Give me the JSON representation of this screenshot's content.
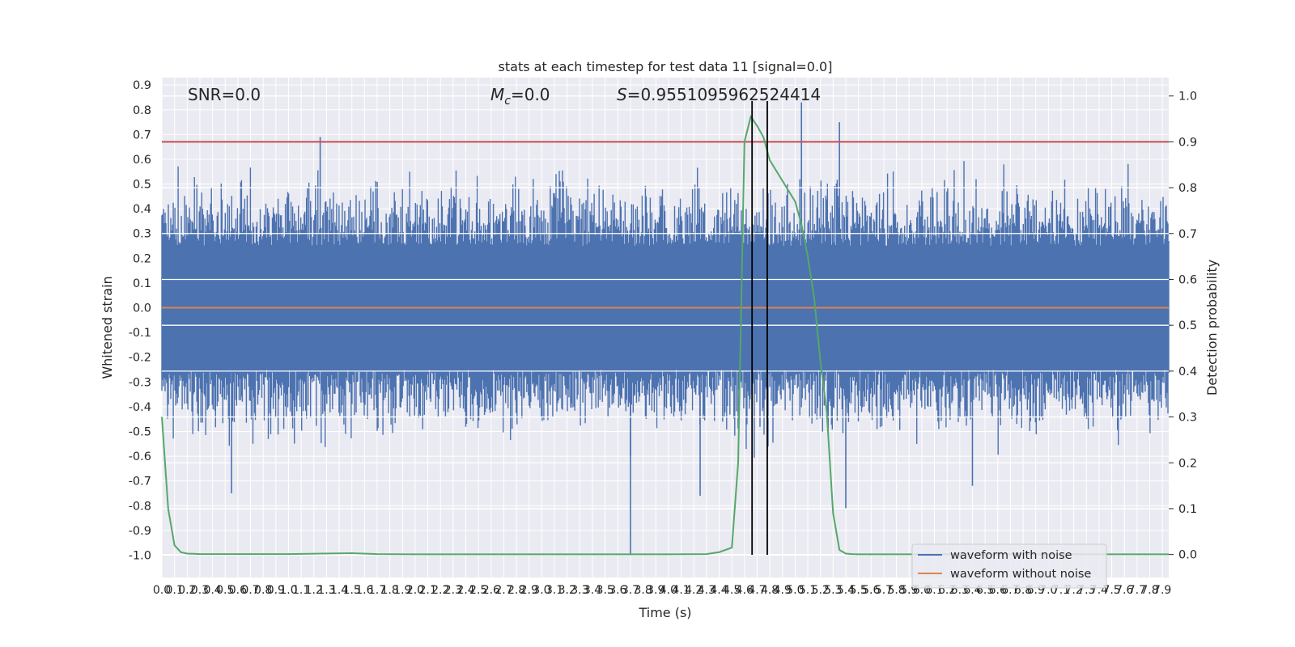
{
  "chart_data": {
    "type": "line",
    "title": "stats at each timestep for test data 11 [signal=0.0]",
    "xlabel": "Time (s)",
    "ylabel": "Whitened strain",
    "ylabel_right": "Detection probability",
    "xlim": [
      0.0,
      7.95
    ],
    "ylim": [
      -1.09,
      0.93
    ],
    "ylim_right": [
      -0.05,
      1.04
    ],
    "x_ticks": [
      "0.0",
      "0.1",
      "0.2",
      "0.3",
      "0.4",
      "0.5",
      "0.6",
      "0.7",
      "0.8",
      "0.9",
      "1.0",
      "1.1",
      "1.2",
      "1.3",
      "1.4",
      "1.5",
      "1.6",
      "1.7",
      "1.8",
      "1.9",
      "2.0",
      "2.1",
      "2.2",
      "2.3",
      "2.4",
      "2.5",
      "2.6",
      "2.7",
      "2.8",
      "2.9",
      "3.0",
      "3.1",
      "3.2",
      "3.3",
      "3.4",
      "3.5",
      "3.6",
      "3.7",
      "3.8",
      "3.9",
      "4.0",
      "4.1",
      "4.2",
      "4.3",
      "4.4",
      "4.5",
      "4.6",
      "4.7",
      "4.8",
      "4.9",
      "5.0",
      "5.1",
      "5.2",
      "5.3",
      "5.4",
      "5.5",
      "5.6",
      "5.7",
      "5.8",
      "5.9",
      "6.0",
      "6.1",
      "6.2",
      "6.3",
      "6.4",
      "6.5",
      "6.6",
      "6.7",
      "6.8",
      "6.9",
      "7.0",
      "7.1",
      "7.2",
      "7.3",
      "7.4",
      "7.5",
      "7.6",
      "7.7",
      "7.8",
      "7.9"
    ],
    "y_ticks": [
      "0.9",
      "0.8",
      "0.7",
      "0.6",
      "0.5",
      "0.4",
      "0.3",
      "0.2",
      "0.1",
      "0.0",
      "-0.1",
      "-0.2",
      "-0.3",
      "-0.4",
      "-0.5",
      "-0.6",
      "-0.7",
      "-0.8",
      "-0.9",
      "-1.0"
    ],
    "y_ticks_right": [
      "1.0",
      "0.9",
      "0.8",
      "0.7",
      "0.6",
      "0.5",
      "0.4",
      "0.3",
      "0.2",
      "0.1",
      "0.0"
    ],
    "annotations": {
      "snr": "SNR=0.0",
      "mc_symbol": "M",
      "mc_subscript": "c",
      "mc_value": "=0.0",
      "s_symbol": "S",
      "s_value": "=0.9551095962524414"
    },
    "series": [
      {
        "name": "waveform with noise",
        "axis": "left",
        "color": "#4c72b0",
        "style": "dense-noise",
        "spikes": [
          {
            "x": 3.7,
            "y": -1.0
          },
          {
            "x": 5.05,
            "y": 0.83
          },
          {
            "x": 5.35,
            "y": 0.75
          },
          {
            "x": 1.25,
            "y": 0.69
          },
          {
            "x": 0.55,
            "y": -0.75
          },
          {
            "x": 4.25,
            "y": -0.76
          },
          {
            "x": 5.4,
            "y": -0.81
          },
          {
            "x": 6.4,
            "y": -0.72
          },
          {
            "x": 3.7,
            "y": -0.6
          }
        ]
      },
      {
        "name": "waveform without noise",
        "axis": "left",
        "color": "#dd8452",
        "x": [
          0.0,
          7.95
        ],
        "y": [
          0.0,
          0.0
        ]
      },
      {
        "axis": "right",
        "color": "#55a868",
        "x": [
          0.0,
          0.05,
          0.1,
          0.15,
          0.2,
          0.25,
          0.3,
          1.0,
          1.5,
          1.7,
          2.0,
          3.0,
          4.0,
          4.3,
          4.4,
          4.5,
          4.55,
          4.6,
          4.65,
          4.7,
          4.75,
          4.8,
          5.0,
          5.05,
          5.1,
          5.15,
          5.2,
          5.25,
          5.3,
          5.35,
          5.4,
          5.45,
          5.5,
          6.0,
          7.0,
          7.95
        ],
        "y": [
          0.3,
          0.1,
          0.02,
          0.005,
          0.002,
          0.0015,
          0.001,
          0.001,
          0.003,
          0.001,
          0.0005,
          0.0005,
          0.0005,
          0.001,
          0.005,
          0.015,
          0.2,
          0.9,
          0.955,
          0.935,
          0.91,
          0.86,
          0.77,
          0.72,
          0.65,
          0.56,
          0.42,
          0.31,
          0.09,
          0.01,
          0.002,
          0.001,
          0.0005,
          0.0005,
          0.0005,
          0.0005
        ]
      }
    ],
    "threshold": {
      "axis": "right",
      "y": 0.9,
      "color": "#c44e52"
    },
    "vertical_lines": [
      4.66,
      4.78
    ],
    "grid": true,
    "legend": {
      "placement": "lower-right",
      "entries": [
        {
          "label": "waveform with noise",
          "color": "#4c72b0"
        },
        {
          "label": "waveform without noise",
          "color": "#dd8452"
        }
      ]
    },
    "colors": {
      "background": "#eaeaf2",
      "grid": "#ffffff"
    }
  }
}
